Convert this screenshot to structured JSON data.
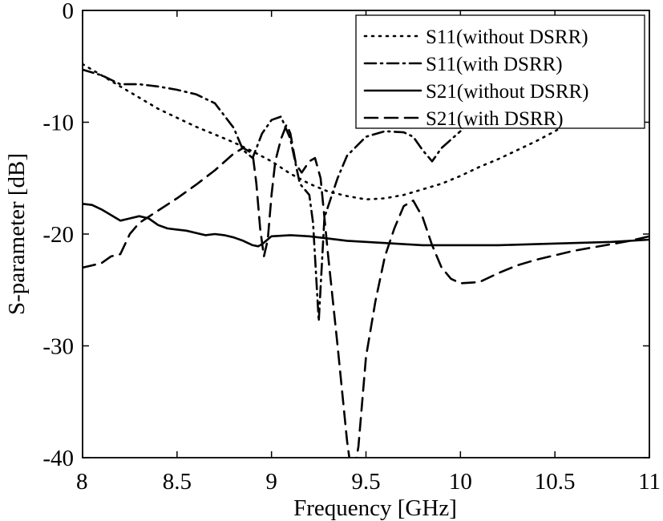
{
  "chart_data": {
    "type": "line",
    "xlabel": "Frequency [GHz]",
    "ylabel": "S-parameter [dB]",
    "xlim": [
      8,
      11
    ],
    "ylim": [
      -40,
      0
    ],
    "xticks": [
      "8",
      "8.5",
      "9",
      "9.5",
      "10",
      "10.5",
      "11"
    ],
    "yticks": [
      "0",
      "-10",
      "-20",
      "-30",
      "-40"
    ],
    "grid": false,
    "legend_position": "top-right",
    "series": [
      {
        "name": "S11(without DSRR)",
        "style": "dotted",
        "color": "#000000",
        "x": [
          8.0,
          8.1,
          8.2,
          8.3,
          8.4,
          8.5,
          8.6,
          8.7,
          8.8,
          8.9,
          9.0,
          9.1,
          9.2,
          9.3,
          9.4,
          9.5,
          9.6,
          9.7,
          9.8,
          9.9,
          10.0,
          10.1,
          10.2,
          10.3,
          10.4,
          10.5,
          10.55,
          10.6
        ],
        "y": [
          -4.8,
          -5.8,
          -6.8,
          -7.8,
          -8.8,
          -9.6,
          -10.4,
          -11.1,
          -11.8,
          -12.6,
          -13.5,
          -14.6,
          -15.5,
          -16.2,
          -16.6,
          -16.9,
          -16.8,
          -16.5,
          -16.0,
          -15.5,
          -14.8,
          -14.0,
          -13.3,
          -12.5,
          -11.7,
          -10.8,
          -10.3,
          -9.8
        ]
      },
      {
        "name": "S11(with DSRR)",
        "style": "dashdot",
        "color": "#000000",
        "x": [
          8.0,
          8.1,
          8.2,
          8.3,
          8.4,
          8.5,
          8.6,
          8.7,
          8.8,
          8.85,
          8.9,
          8.95,
          9.0,
          9.05,
          9.1,
          9.15,
          9.2,
          9.22,
          9.25,
          9.28,
          9.3,
          9.35,
          9.4,
          9.5,
          9.6,
          9.7,
          9.75,
          9.8,
          9.85,
          9.9,
          10.0
        ],
        "y": [
          -5.3,
          -5.8,
          -6.6,
          -6.6,
          -6.8,
          -7.1,
          -7.5,
          -8.3,
          -10.5,
          -12.5,
          -13.2,
          -11.0,
          -9.8,
          -9.5,
          -11.5,
          -15.5,
          -16.5,
          -19.0,
          -27.8,
          -18.5,
          -17.5,
          -15.0,
          -13.0,
          -11.3,
          -10.8,
          -10.9,
          -11.3,
          -12.5,
          -13.5,
          -12.3,
          -10.8
        ]
      },
      {
        "name": "S21(without DSRR)",
        "style": "solid",
        "color": "#000000",
        "x": [
          8.0,
          8.05,
          8.1,
          8.15,
          8.2,
          8.25,
          8.3,
          8.35,
          8.4,
          8.45,
          8.5,
          8.55,
          8.6,
          8.65,
          8.7,
          8.75,
          8.8,
          8.85,
          8.9,
          8.93,
          8.95,
          9.0,
          9.1,
          9.2,
          9.3,
          9.4,
          9.5,
          9.6,
          9.7,
          9.8,
          9.9,
          10.0,
          10.2,
          10.4,
          10.6,
          10.8,
          11.0
        ],
        "y": [
          -17.3,
          -17.4,
          -17.8,
          -18.3,
          -18.8,
          -18.6,
          -18.4,
          -18.6,
          -19.2,
          -19.5,
          -19.6,
          -19.7,
          -19.9,
          -20.1,
          -20.0,
          -20.1,
          -20.3,
          -20.6,
          -21.0,
          -21.1,
          -20.9,
          -20.2,
          -20.1,
          -20.2,
          -20.4,
          -20.6,
          -20.7,
          -20.8,
          -20.9,
          -21.0,
          -21.0,
          -21.0,
          -21.0,
          -20.9,
          -20.8,
          -20.7,
          -20.5
        ]
      },
      {
        "name": "S21(with DSRR)",
        "style": "dashed",
        "color": "#000000",
        "x": [
          8.0,
          8.05,
          8.1,
          8.15,
          8.2,
          8.25,
          8.3,
          8.4,
          8.5,
          8.6,
          8.7,
          8.8,
          8.85,
          8.9,
          8.92,
          8.94,
          8.96,
          8.98,
          9.0,
          9.02,
          9.05,
          9.08,
          9.1,
          9.13,
          9.16,
          9.2,
          9.23,
          9.26,
          9.3,
          9.35,
          9.4,
          9.42,
          9.44,
          9.46,
          9.48,
          9.5,
          9.55,
          9.6,
          9.65,
          9.7,
          9.75,
          9.8,
          9.85,
          9.9,
          9.95,
          10.0,
          10.1,
          10.2,
          10.3,
          10.4,
          10.5,
          10.6,
          10.7,
          10.8,
          10.9,
          11.0
        ],
        "y": [
          -23.0,
          -22.8,
          -22.6,
          -22.0,
          -21.8,
          -20.0,
          -19.0,
          -17.9,
          -16.8,
          -15.6,
          -14.3,
          -12.8,
          -12.3,
          -12.8,
          -15.5,
          -19.5,
          -22.0,
          -20.5,
          -16.5,
          -13.5,
          -11.5,
          -10.2,
          -11.0,
          -13.8,
          -14.5,
          -13.5,
          -13.2,
          -15.0,
          -22.0,
          -30.0,
          -38.5,
          -41.0,
          -41.0,
          -39.0,
          -35.0,
          -31.0,
          -26.0,
          -22.0,
          -19.5,
          -17.5,
          -17.0,
          -18.5,
          -21.0,
          -23.0,
          -24.0,
          -24.4,
          -24.3,
          -23.5,
          -22.8,
          -22.3,
          -21.9,
          -21.5,
          -21.2,
          -20.9,
          -20.6,
          -20.2
        ]
      }
    ]
  }
}
